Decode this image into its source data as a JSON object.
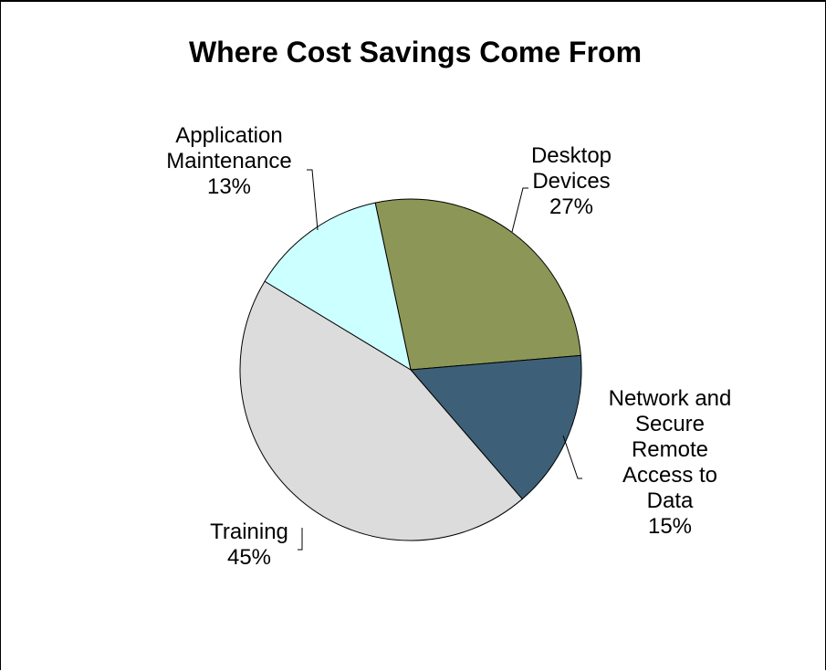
{
  "chart_data": {
    "type": "pie",
    "title": "Where Cost Savings Come From",
    "slices": [
      {
        "label_lines": [
          "Desktop",
          "Devices"
        ],
        "value": 27,
        "value_label": "27%",
        "color": "#8c9757"
      },
      {
        "label_lines": [
          "Network and",
          "Secure",
          "Remote",
          "Access to",
          "Data"
        ],
        "value": 15,
        "value_label": "15%",
        "color": "#3d6078"
      },
      {
        "label_lines": [
          "Training"
        ],
        "value": 45,
        "value_label": "45%",
        "color": "#dcdcdc"
      },
      {
        "label_lines": [
          "Application",
          "Maintenance"
        ],
        "value": 13,
        "value_label": "13%",
        "color": "#ccffff"
      }
    ],
    "start_angle_deg": -12,
    "direction": "clockwise",
    "legend": "none",
    "data_labels": "outside"
  }
}
